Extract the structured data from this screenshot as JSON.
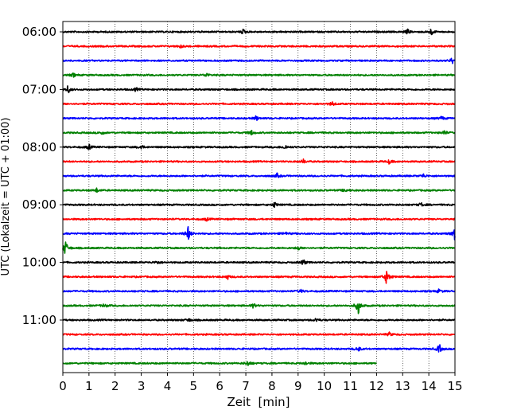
{
  "chart_data": {
    "type": "line",
    "chart_kind": "helicorder",
    "xlabel": "Zeit  [min]",
    "ylabel": "UTC (Lokalzeit = UTC + 01:00)",
    "xlim": [
      0,
      15
    ],
    "x_ticks": [
      "0",
      "1",
      "2",
      "3",
      "4",
      "5",
      "6",
      "7",
      "8",
      "9",
      "10",
      "11",
      "12",
      "13",
      "14",
      "15"
    ],
    "y_tick_labels": [
      "06:00",
      "07:00",
      "08:00",
      "09:00",
      "10:00",
      "11:00"
    ],
    "y_tick_rows": [
      0,
      4,
      8,
      12,
      16,
      20
    ],
    "grid": "vertical dotted at each minute",
    "trace_colors": [
      "#000000",
      "#ff0000",
      "#0000ff",
      "#008000"
    ],
    "trace_color_cycle": "black, red, blue, green",
    "rows": [
      {
        "start": "06:00",
        "end_minute": 15,
        "events": [
          {
            "t": 6.9,
            "amp": 0.35
          },
          {
            "t": 13.2,
            "amp": 0.4
          },
          {
            "t": 14.1,
            "amp": 0.5
          }
        ]
      },
      {
        "start": "06:15",
        "end_minute": 15,
        "events": [
          {
            "t": 4.5,
            "amp": 0.25
          }
        ]
      },
      {
        "start": "06:30",
        "end_minute": 15,
        "events": [
          {
            "t": 14.9,
            "amp": 0.5
          }
        ]
      },
      {
        "start": "06:45",
        "end_minute": 15,
        "events": [
          {
            "t": 0.4,
            "amp": 0.3
          },
          {
            "t": 5.5,
            "amp": 0.3
          }
        ]
      },
      {
        "start": "07:00",
        "end_minute": 15,
        "events": [
          {
            "t": 0.2,
            "amp": 0.6
          },
          {
            "t": 2.8,
            "amp": 0.25
          }
        ]
      },
      {
        "start": "07:15",
        "end_minute": 15,
        "events": [
          {
            "t": 10.3,
            "amp": 0.35
          }
        ]
      },
      {
        "start": "07:30",
        "end_minute": 15,
        "events": [
          {
            "t": 7.4,
            "amp": 0.35
          },
          {
            "t": 14.5,
            "amp": 0.3
          }
        ]
      },
      {
        "start": "07:45",
        "end_minute": 15,
        "events": [
          {
            "t": 1.5,
            "amp": 0.3
          },
          {
            "t": 7.2,
            "amp": 0.4
          },
          {
            "t": 14.6,
            "amp": 0.4
          }
        ]
      },
      {
        "start": "08:00",
        "end_minute": 15,
        "events": [
          {
            "t": 1.0,
            "amp": 0.4
          },
          {
            "t": 3.0,
            "amp": 0.35
          },
          {
            "t": 8.5,
            "amp": 0.35
          }
        ]
      },
      {
        "start": "08:15",
        "end_minute": 15,
        "events": [
          {
            "t": 9.2,
            "amp": 0.35
          },
          {
            "t": 12.5,
            "amp": 0.35
          }
        ]
      },
      {
        "start": "08:30",
        "end_minute": 15,
        "events": [
          {
            "t": 8.2,
            "amp": 0.35
          },
          {
            "t": 13.8,
            "amp": 0.3
          }
        ]
      },
      {
        "start": "08:45",
        "end_minute": 15,
        "events": [
          {
            "t": 1.3,
            "amp": 0.3
          },
          {
            "t": 10.8,
            "amp": 0.3
          }
        ]
      },
      {
        "start": "09:00",
        "end_minute": 15,
        "events": [
          {
            "t": 8.1,
            "amp": 0.4
          },
          {
            "t": 13.7,
            "amp": 0.3
          }
        ]
      },
      {
        "start": "09:15",
        "end_minute": 15,
        "events": [
          {
            "t": 5.5,
            "amp": 0.25
          }
        ]
      },
      {
        "start": "09:30",
        "end_minute": 15,
        "events": [
          {
            "t": 4.8,
            "amp": 1.2
          },
          {
            "t": 8.5,
            "amp": 0.3
          },
          {
            "t": 15.0,
            "amp": 1.3
          }
        ]
      },
      {
        "start": "09:45",
        "end_minute": 15,
        "events": [
          {
            "t": 0.1,
            "amp": 1.3
          },
          {
            "t": 9.0,
            "amp": 0.3
          }
        ]
      },
      {
        "start": "10:00",
        "end_minute": 15,
        "events": [
          {
            "t": 3.6,
            "amp": 0.3
          },
          {
            "t": 9.2,
            "amp": 0.5
          }
        ]
      },
      {
        "start": "10:15",
        "end_minute": 15,
        "events": [
          {
            "t": 6.3,
            "amp": 0.35
          },
          {
            "t": 12.4,
            "amp": 1.4
          }
        ]
      },
      {
        "start": "10:30",
        "end_minute": 15,
        "events": [
          {
            "t": 9.1,
            "amp": 0.3
          },
          {
            "t": 14.4,
            "amp": 0.3
          }
        ]
      },
      {
        "start": "10:45",
        "end_minute": 15,
        "events": [
          {
            "t": 1.6,
            "amp": 0.35
          },
          {
            "t": 7.3,
            "amp": 0.35
          },
          {
            "t": 11.3,
            "amp": 1.3
          }
        ]
      },
      {
        "start": "11:00",
        "end_minute": 15,
        "events": [
          {
            "t": 4.8,
            "amp": 0.3
          },
          {
            "t": 9.7,
            "amp": 0.3
          }
        ]
      },
      {
        "start": "11:15",
        "end_minute": 15,
        "events": [
          {
            "t": 12.5,
            "amp": 0.3
          }
        ]
      },
      {
        "start": "11:30",
        "end_minute": 15,
        "events": [
          {
            "t": 11.3,
            "amp": 0.45
          },
          {
            "t": 14.4,
            "amp": 0.7
          }
        ]
      },
      {
        "start": "11:45",
        "end_minute": 12,
        "events": [
          {
            "t": 7.1,
            "amp": 0.5
          },
          {
            "t": 9.3,
            "amp": 0.3
          }
        ]
      }
    ]
  }
}
